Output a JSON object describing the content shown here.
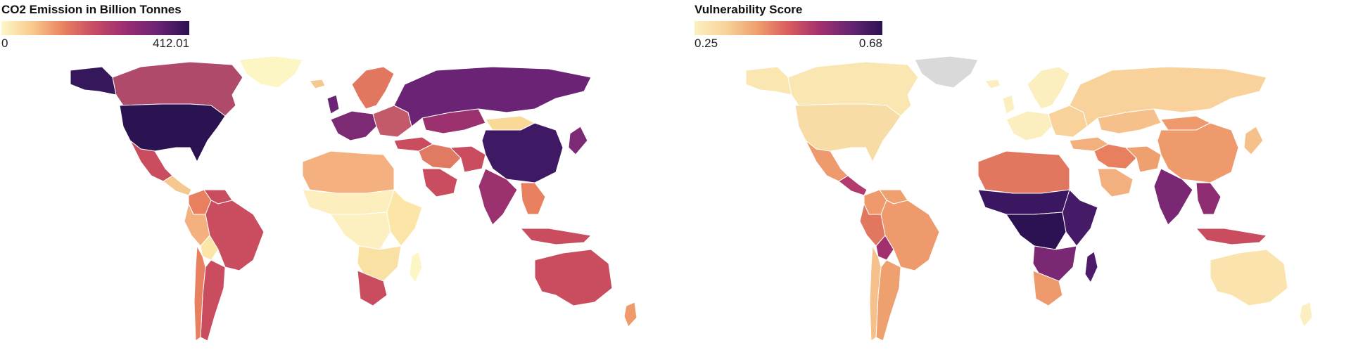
{
  "maps": [
    {
      "legend_title": "CO2 Emission in Billion Tonnes",
      "scale_min": "0",
      "scale_max": "412.01",
      "gradient_colors": [
        "#fcf7c9",
        "#f9c98a",
        "#e8805f",
        "#c64a66",
        "#9a2d73",
        "#6b2375",
        "#2b1251"
      ],
      "regions": [
        {
          "name": "Alaska",
          "color": "#35185c"
        },
        {
          "name": "Canada",
          "color": "#b04a6a"
        },
        {
          "name": "Greenland",
          "color": "#fcf5c4"
        },
        {
          "name": "United States",
          "color": "#2b1251"
        },
        {
          "name": "Mexico",
          "color": "#c94c5f"
        },
        {
          "name": "Central America",
          "color": "#f4c88f"
        },
        {
          "name": "Colombia",
          "color": "#e8805f"
        },
        {
          "name": "Venezuela",
          "color": "#c94c5f"
        },
        {
          "name": "Brazil",
          "color": "#c94c5f"
        },
        {
          "name": "Peru",
          "color": "#f4b07e"
        },
        {
          "name": "Bolivia",
          "color": "#fbe6a8"
        },
        {
          "name": "Argentina",
          "color": "#c94c5f"
        },
        {
          "name": "Chile",
          "color": "#e8805f"
        },
        {
          "name": "Iceland",
          "color": "#f4c88f"
        },
        {
          "name": "Scandinavia",
          "color": "#e0775e"
        },
        {
          "name": "United Kingdom",
          "color": "#6b2375"
        },
        {
          "name": "Western Europe",
          "color": "#7d2a74"
        },
        {
          "name": "Eastern Europe",
          "color": "#c25a6b"
        },
        {
          "name": "Russia",
          "color": "#6b2375"
        },
        {
          "name": "Turkey",
          "color": "#c94c5f"
        },
        {
          "name": "Kazakhstan",
          "color": "#9b316f"
        },
        {
          "name": "Middle East",
          "color": "#e07a62"
        },
        {
          "name": "Saudi Arabia",
          "color": "#c94c5f"
        },
        {
          "name": "Iran",
          "color": "#c94c5f"
        },
        {
          "name": "Mongolia",
          "color": "#f9d998"
        },
        {
          "name": "China",
          "color": "#3f1964"
        },
        {
          "name": "Japan",
          "color": "#7d2a74"
        },
        {
          "name": "India",
          "color": "#9b316f"
        },
        {
          "name": "Southeast Asia",
          "color": "#e8805f"
        },
        {
          "name": "Indonesia",
          "color": "#c94c5f"
        },
        {
          "name": "North Africa",
          "color": "#f4b07e"
        },
        {
          "name": "Sahel",
          "color": "#fcefbd"
        },
        {
          "name": "Central Africa",
          "color": "#fcf0c0"
        },
        {
          "name": "East Africa",
          "color": "#fbe6a8"
        },
        {
          "name": "Southern Africa",
          "color": "#f9e0a3"
        },
        {
          "name": "South Africa",
          "color": "#c94c5f"
        },
        {
          "name": "Madagascar",
          "color": "#fcf5c4"
        },
        {
          "name": "Australia",
          "color": "#c94c5f"
        },
        {
          "name": "New Zealand",
          "color": "#f09a6c"
        }
      ]
    },
    {
      "legend_title": "Vulnerability Score",
      "scale_min": "0.25",
      "scale_max": "0.68",
      "gradient_colors": [
        "#fcf0c0",
        "#f8d29a",
        "#eea06e",
        "#d95c5e",
        "#a2306f",
        "#652573",
        "#2c1252"
      ],
      "regions": [
        {
          "name": "Alaska",
          "color": "#f9e6b0"
        },
        {
          "name": "Canada",
          "color": "#f9e6b0"
        },
        {
          "name": "Greenland",
          "color": "#d9d9d9"
        },
        {
          "name": "United States",
          "color": "#f8dca5"
        },
        {
          "name": "Mexico",
          "color": "#ee9a6c"
        },
        {
          "name": "Central America",
          "color": "#b23a6c"
        },
        {
          "name": "Colombia",
          "color": "#ee9a6c"
        },
        {
          "name": "Venezuela",
          "color": "#eea06e"
        },
        {
          "name": "Brazil",
          "color": "#ee9a6c"
        },
        {
          "name": "Peru",
          "color": "#e0775e"
        },
        {
          "name": "Bolivia",
          "color": "#a2306f"
        },
        {
          "name": "Argentina",
          "color": "#eea06e"
        },
        {
          "name": "Chile",
          "color": "#f6c08a"
        },
        {
          "name": "Iceland",
          "color": "#fbefc0"
        },
        {
          "name": "Scandinavia",
          "color": "#fbefc0"
        },
        {
          "name": "United Kingdom",
          "color": "#fbefc0"
        },
        {
          "name": "Western Europe",
          "color": "#fbefc0"
        },
        {
          "name": "Eastern Europe",
          "color": "#f8d29a"
        },
        {
          "name": "Russia",
          "color": "#f8d29a"
        },
        {
          "name": "Turkey",
          "color": "#f2b07e"
        },
        {
          "name": "Kazakhstan",
          "color": "#f6c08a"
        },
        {
          "name": "Middle East",
          "color": "#e8805f"
        },
        {
          "name": "Saudi Arabia",
          "color": "#f2b07e"
        },
        {
          "name": "Iran",
          "color": "#eea06e"
        },
        {
          "name": "Mongolia",
          "color": "#ee9a6c"
        },
        {
          "name": "China",
          "color": "#ee9a6c"
        },
        {
          "name": "Japan",
          "color": "#f6c08a"
        },
        {
          "name": "India",
          "color": "#7a2873"
        },
        {
          "name": "Southeast Asia",
          "color": "#8e2d72"
        },
        {
          "name": "Indonesia",
          "color": "#c94c5f"
        },
        {
          "name": "North Africa",
          "color": "#e0775e"
        },
        {
          "name": "Sahel",
          "color": "#3a1760"
        },
        {
          "name": "Central Africa",
          "color": "#2c1252"
        },
        {
          "name": "East Africa",
          "color": "#451a66"
        },
        {
          "name": "Southern Africa",
          "color": "#7a2873"
        },
        {
          "name": "South Africa",
          "color": "#ee9a6c"
        },
        {
          "name": "Madagascar",
          "color": "#4d1b69"
        },
        {
          "name": "Australia",
          "color": "#fbe3ad"
        },
        {
          "name": "New Zealand",
          "color": "#fbefc0"
        }
      ]
    }
  ]
}
